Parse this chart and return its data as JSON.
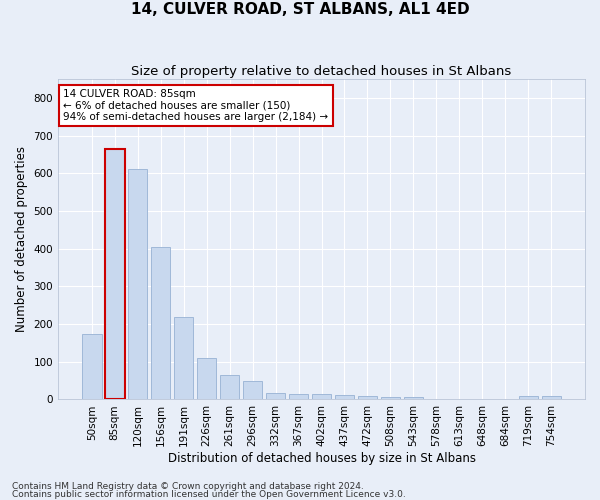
{
  "title": "14, CULVER ROAD, ST ALBANS, AL1 4ED",
  "subtitle": "Size of property relative to detached houses in St Albans",
  "xlabel": "Distribution of detached houses by size in St Albans",
  "ylabel": "Number of detached properties",
  "footnote1": "Contains HM Land Registry data © Crown copyright and database right 2024.",
  "footnote2": "Contains public sector information licensed under the Open Government Licence v3.0.",
  "categories": [
    "50sqm",
    "85sqm",
    "120sqm",
    "156sqm",
    "191sqm",
    "226sqm",
    "261sqm",
    "296sqm",
    "332sqm",
    "367sqm",
    "402sqm",
    "437sqm",
    "472sqm",
    "508sqm",
    "543sqm",
    "578sqm",
    "613sqm",
    "648sqm",
    "684sqm",
    "719sqm",
    "754sqm"
  ],
  "values": [
    175,
    665,
    612,
    405,
    218,
    110,
    65,
    48,
    17,
    15,
    15,
    12,
    8,
    7,
    7,
    0,
    0,
    0,
    0,
    8,
    8
  ],
  "bar_color": "#c8d8ee",
  "bar_edge_color": "#a0b8d8",
  "highlight_bar_index": 1,
  "highlight_bar_edge_color": "#cc0000",
  "annotation_text": "14 CULVER ROAD: 85sqm\n← 6% of detached houses are smaller (150)\n94% of semi-detached houses are larger (2,184) →",
  "annotation_box_color": "#ffffff",
  "annotation_box_edge_color": "#cc0000",
  "ylim": [
    0,
    850
  ],
  "yticks": [
    0,
    100,
    200,
    300,
    400,
    500,
    600,
    700,
    800
  ],
  "background_color": "#e8eef8",
  "axes_background_color": "#e8eef8",
  "grid_color": "#ffffff",
  "title_fontsize": 11,
  "subtitle_fontsize": 9.5,
  "axis_label_fontsize": 8.5,
  "tick_fontsize": 7.5,
  "annotation_fontsize": 7.5,
  "footnote_fontsize": 6.5
}
